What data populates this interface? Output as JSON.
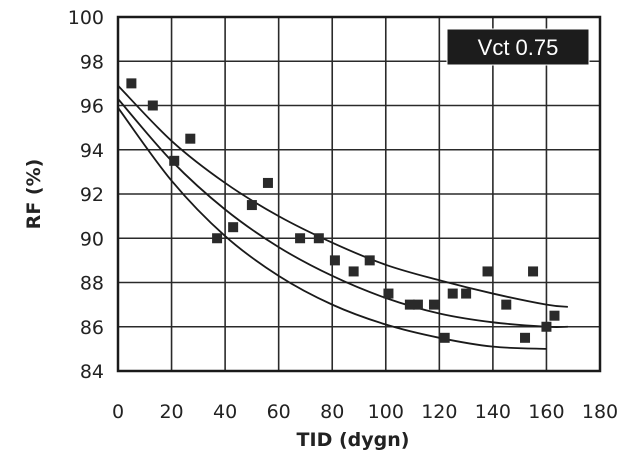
{
  "chart_data": {
    "type": "scatter",
    "title": "",
    "xlabel": "TID (dygn)",
    "ylabel": "RF (%)",
    "xlim": [
      0,
      180
    ],
    "ylim": [
      84,
      100
    ],
    "xticks": [
      0,
      20,
      40,
      60,
      80,
      100,
      120,
      140,
      160,
      180
    ],
    "yticks": [
      84,
      86,
      88,
      90,
      92,
      94,
      96,
      98,
      100
    ],
    "grid": true,
    "annotation": "Vct 0.75",
    "marker_color": "#2a2a2a",
    "points": [
      {
        "x": 5,
        "y": 97.0
      },
      {
        "x": 13,
        "y": 96.0
      },
      {
        "x": 21,
        "y": 93.5
      },
      {
        "x": 27,
        "y": 94.5
      },
      {
        "x": 37,
        "y": 90.0
      },
      {
        "x": 43,
        "y": 90.5
      },
      {
        "x": 50,
        "y": 91.5
      },
      {
        "x": 56,
        "y": 92.5
      },
      {
        "x": 68,
        "y": 90.0
      },
      {
        "x": 75,
        "y": 90.0
      },
      {
        "x": 81,
        "y": 89.0
      },
      {
        "x": 88,
        "y": 88.5
      },
      {
        "x": 94,
        "y": 89.0
      },
      {
        "x": 101,
        "y": 87.5
      },
      {
        "x": 109,
        "y": 87.0
      },
      {
        "x": 112,
        "y": 87.0
      },
      {
        "x": 118,
        "y": 87.0
      },
      {
        "x": 122,
        "y": 85.5
      },
      {
        "x": 125,
        "y": 87.5
      },
      {
        "x": 130,
        "y": 87.5
      },
      {
        "x": 138,
        "y": 88.5
      },
      {
        "x": 145,
        "y": 87.0
      },
      {
        "x": 152,
        "y": 85.5
      },
      {
        "x": 155,
        "y": 88.5
      },
      {
        "x": 160,
        "y": 86.0
      },
      {
        "x": 163,
        "y": 86.5
      }
    ],
    "curves": [
      {
        "x": [
          0,
          20,
          40,
          60,
          80,
          100,
          120,
          140,
          160,
          168
        ],
        "y": [
          96.9,
          94.4,
          92.5,
          91.0,
          89.8,
          88.8,
          88.1,
          87.5,
          87.0,
          86.9
        ]
      },
      {
        "x": [
          0,
          20,
          40,
          60,
          80,
          100,
          120,
          140,
          160,
          168
        ],
        "y": [
          96.3,
          93.5,
          91.3,
          89.6,
          88.3,
          87.3,
          86.6,
          86.2,
          86.0,
          86.0
        ]
      },
      {
        "x": [
          0,
          20,
          40,
          60,
          80,
          100,
          120,
          140,
          160
        ],
        "y": [
          95.9,
          92.6,
          90.1,
          88.3,
          87.0,
          86.1,
          85.5,
          85.1,
          85.0
        ]
      }
    ]
  }
}
